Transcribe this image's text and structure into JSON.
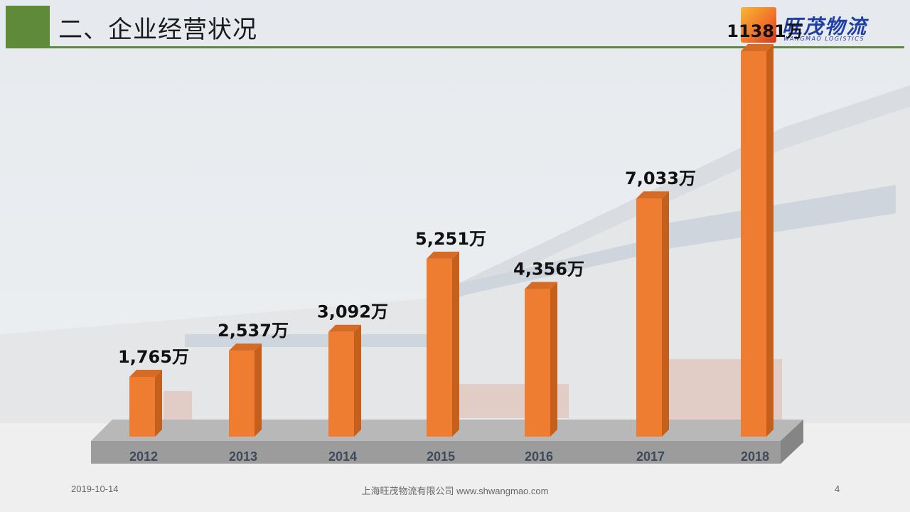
{
  "header": {
    "title": "二、企业经营状况",
    "logo_name": "旺茂物流",
    "logo_sub": "WANGMAO LOGISTICS"
  },
  "footer": {
    "date": "2019-10-14",
    "company": "上海旺茂物流有限公司 www.shwangmao.com",
    "page": "4"
  },
  "colors": {
    "accent_green": "#5e8a3a",
    "bar_front": "#ee7d31",
    "bar_side": "#c55f1c",
    "bar_top": "#d66b25",
    "floor": "#9c9c9c"
  },
  "chart_data": {
    "type": "bar",
    "categories": [
      "2012",
      "2013",
      "2014",
      "2015",
      "2016",
      "2017",
      "2018"
    ],
    "values": [
      1765,
      2537,
      3092,
      5251,
      4356,
      7033,
      11381
    ],
    "data_labels": [
      "1,765万",
      "2,537万",
      "3,092万",
      "5,251万",
      "4,356万",
      "7,033万",
      "11381万"
    ],
    "unit": "万",
    "title": "",
    "xlabel": "",
    "ylabel": "",
    "ylim": [
      0,
      11381
    ],
    "grid": false,
    "legend": "none",
    "style": "3d-column"
  }
}
